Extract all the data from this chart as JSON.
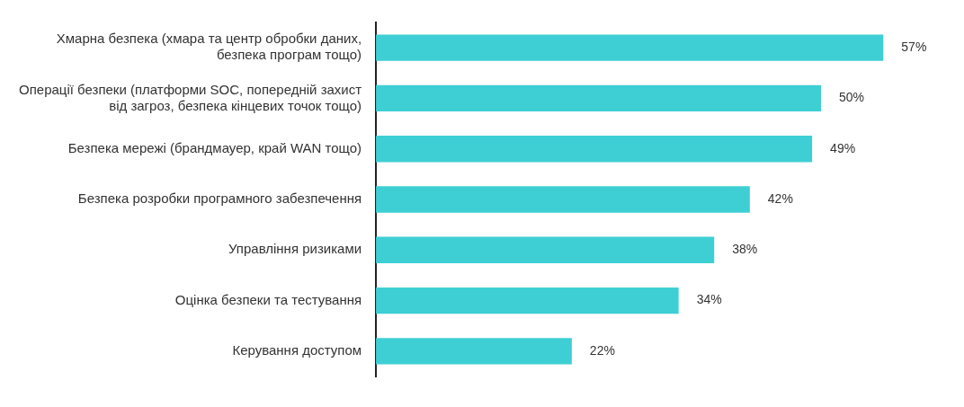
{
  "chart_data": {
    "type": "bar",
    "orientation": "horizontal",
    "categories": [
      "Хмарна безпека (хмара та центр обробки даних, безпека програм тощо)",
      "Операції безпеки (платформи SOC, попередній захист від загроз, безпека кінцевих точок тощо)",
      "Безпека мережі (брандмауер, край WAN тощо)",
      "Безпека розробки програмного забезпечення",
      "Управління ризиками",
      "Оцінка безпеки та тестування",
      "Керування доступом"
    ],
    "values": [
      57,
      50,
      49,
      42,
      38,
      34,
      22
    ],
    "value_labels": [
      "57%",
      "50%",
      "49%",
      "42%",
      "38%",
      "34%",
      "22%"
    ],
    "color": "#3ecfd4",
    "legend": false
  }
}
